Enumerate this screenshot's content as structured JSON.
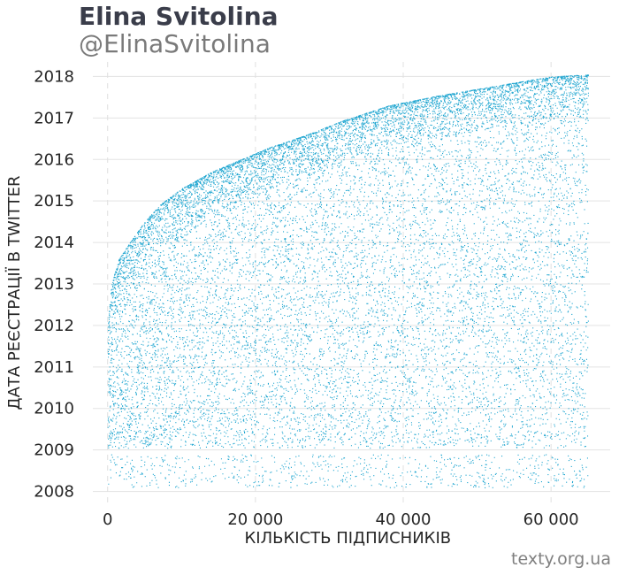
{
  "title": "Elina Svitolina",
  "subtitle": "@ElinaSvitolina",
  "source": "texty.org.ua",
  "chart_data": {
    "type": "scatter",
    "xlabel": "КІЛЬКІСТЬ ПІДПИСНИКІВ",
    "ylabel": "ДАТА РЕЄСТРАЦІЇ В TWITTER",
    "xlim": [
      -2000,
      68000
    ],
    "ylim": [
      2007.65,
      2018.35
    ],
    "x_ticks": [
      {
        "value": 0,
        "label": "0"
      },
      {
        "value": 20000,
        "label": "20 000"
      },
      {
        "value": 40000,
        "label": "40 000"
      },
      {
        "value": 60000,
        "label": "60 000"
      }
    ],
    "y_ticks": [
      {
        "value": 2008,
        "label": "2008"
      },
      {
        "value": 2009,
        "label": "2009"
      },
      {
        "value": 2010,
        "label": "2010"
      },
      {
        "value": 2011,
        "label": "2011"
      },
      {
        "value": 2012,
        "label": "2012"
      },
      {
        "value": 2013,
        "label": "2013"
      },
      {
        "value": 2014,
        "label": "2014"
      },
      {
        "value": 2015,
        "label": "2015"
      },
      {
        "value": 2016,
        "label": "2016"
      },
      {
        "value": 2017,
        "label": "2017"
      },
      {
        "value": 2018,
        "label": "2018"
      }
    ],
    "grid": true,
    "legend": "none",
    "point_color": "#1ea5d0",
    "series": [
      {
        "n_points": 65000,
        "x_range": [
          0,
          65000
        ],
        "y_range": [
          2008.1,
          2018.05
        ],
        "upper_envelope": [
          [
            0,
            2012.0
          ],
          [
            500,
            2013.0
          ],
          [
            1500,
            2013.6
          ],
          [
            3000,
            2014.0
          ],
          [
            5000,
            2014.5
          ],
          [
            7000,
            2014.9
          ],
          [
            10000,
            2015.3
          ],
          [
            14000,
            2015.7
          ],
          [
            18000,
            2016.0
          ],
          [
            22000,
            2016.3
          ],
          [
            27000,
            2016.6
          ],
          [
            32000,
            2016.95
          ],
          [
            38000,
            2017.3
          ],
          [
            45000,
            2017.55
          ],
          [
            50000,
            2017.7
          ],
          [
            55000,
            2017.85
          ],
          [
            60000,
            2018.0
          ],
          [
            65000,
            2018.05
          ]
        ]
      }
    ]
  }
}
